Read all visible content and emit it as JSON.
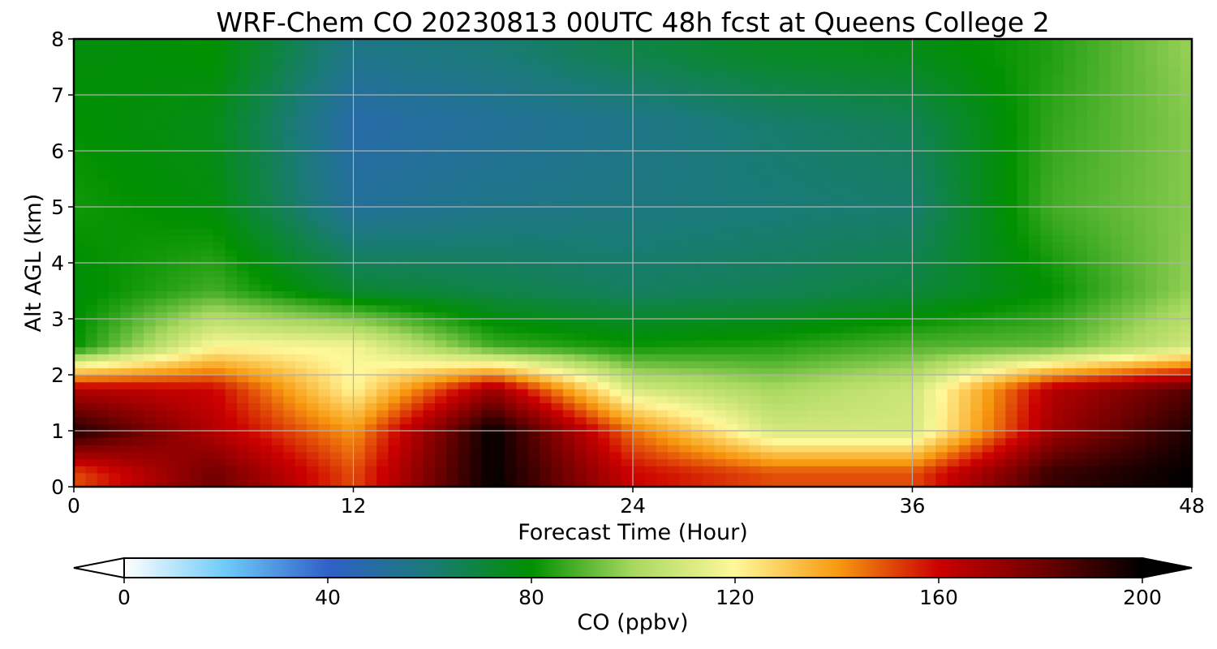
{
  "chart_data": {
    "type": "heatmap",
    "title": "WRF-Chem CO  20230813 00UTC 48h fcst at Queens College 2",
    "xlabel": "Forecast Time (Hour)",
    "ylabel": "Alt AGL (km)",
    "xlim": [
      0,
      48
    ],
    "ylim": [
      0,
      8
    ],
    "x_ticks": [
      "0",
      "12",
      "24",
      "36",
      "48"
    ],
    "y_ticks": [
      "0",
      "1",
      "2",
      "3",
      "4",
      "5",
      "6",
      "7",
      "8"
    ],
    "grid": true,
    "colorbar": {
      "label": "CO  (ppbv)",
      "orientation": "horizontal",
      "range": [
        0,
        200
      ],
      "ticks": [
        "0",
        "40",
        "80",
        "120",
        "160",
        "200"
      ],
      "extend": "both",
      "colors": [
        "#ffffff",
        "#6ecaf8",
        "#3060c8",
        "#1a7a78",
        "#009000",
        "#a8d860",
        "#fff89a",
        "#f89a10",
        "#cc0000",
        "#700000",
        "#000000"
      ]
    },
    "x": [
      0,
      6,
      12,
      18,
      24,
      30,
      36,
      42,
      48
    ],
    "y": [
      0.25,
      1,
      1.75,
      2.5,
      3.5,
      5,
      6.5,
      7.75
    ],
    "values": [
      [
        150,
        180,
        150,
        200,
        160,
        150,
        150,
        190,
        200
      ],
      [
        195,
        165,
        140,
        200,
        145,
        110,
        110,
        170,
        195
      ],
      [
        165,
        160,
        120,
        170,
        110,
        100,
        108,
        165,
        185
      ],
      [
        80,
        120,
        118,
        88,
        82,
        84,
        90,
        92,
        110
      ],
      [
        78,
        88,
        72,
        68,
        64,
        66,
        70,
        80,
        98
      ],
      [
        82,
        78,
        52,
        56,
        58,
        60,
        62,
        88,
        96
      ],
      [
        80,
        76,
        48,
        52,
        56,
        62,
        66,
        86,
        96
      ],
      [
        78,
        80,
        56,
        60,
        68,
        74,
        76,
        84,
        98
      ]
    ]
  }
}
